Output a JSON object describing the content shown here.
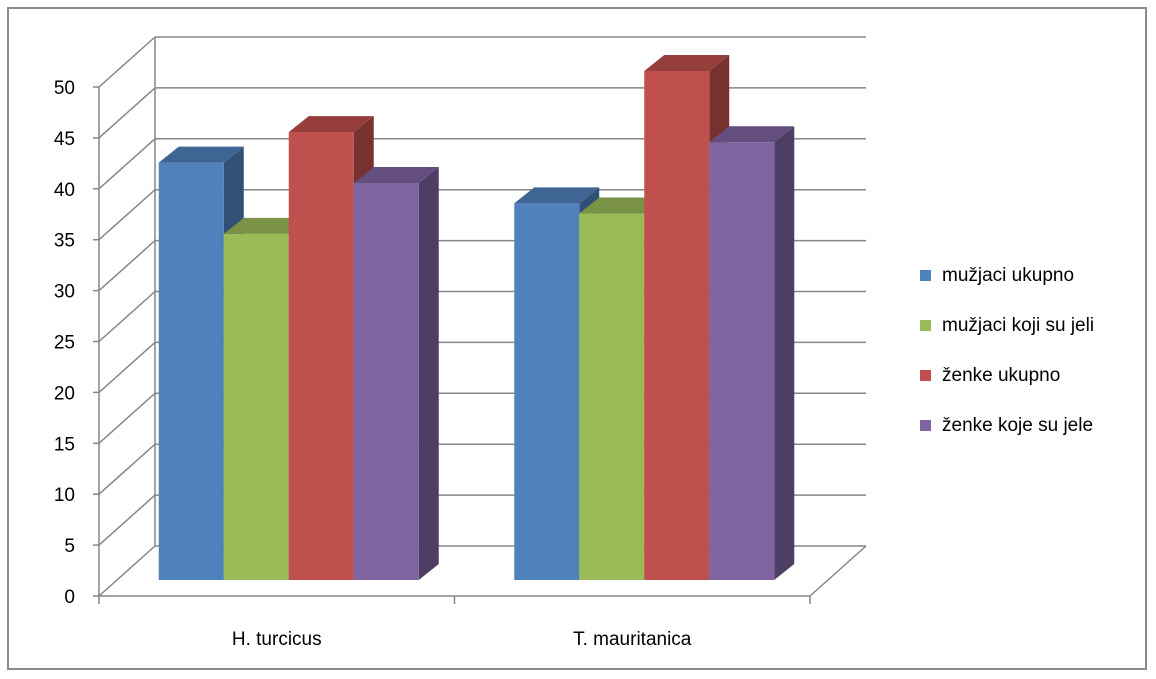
{
  "chart_data": {
    "type": "bar",
    "style": "3d-clustered-column",
    "categories": [
      "H. turcicus",
      "T. mauritanica"
    ],
    "series": [
      {
        "name": "mužjaci ukupno",
        "color": "#4f81bd",
        "values": [
          41,
          37
        ]
      },
      {
        "name": "mužjaci koji su jeli",
        "color": "#9bbb59",
        "values": [
          34,
          36
        ]
      },
      {
        "name": "ženke ukupno",
        "color": "#c0504d",
        "values": [
          44,
          50
        ]
      },
      {
        "name": "ženke koje su jele",
        "color": "#8064a2",
        "values": [
          39,
          43
        ]
      }
    ],
    "ylim": [
      0,
      50
    ],
    "yticks": [
      0,
      5,
      10,
      15,
      20,
      25,
      30,
      35,
      40,
      45,
      50
    ],
    "grid": true,
    "legend": "right"
  }
}
